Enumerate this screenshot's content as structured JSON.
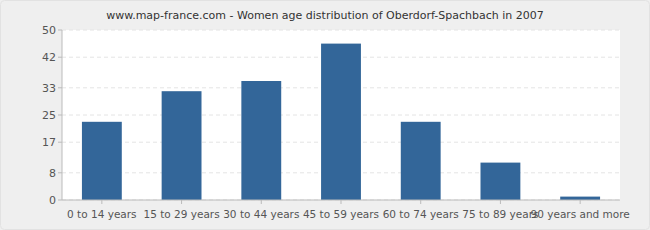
{
  "chart_data": {
    "type": "bar",
    "title": "www.map-france.com - Women age distribution of Oberdorf-Spachbach in 2007",
    "categories": [
      "0 to 14 years",
      "15 to 29 years",
      "30 to 44 years",
      "45 to 59 years",
      "60 to 74 years",
      "75 to 89 years",
      "90 years and more"
    ],
    "values": [
      23,
      32,
      35,
      46,
      23,
      11,
      1
    ],
    "color": "#336699",
    "ylim": [
      0,
      50
    ],
    "yticks": [
      0,
      8,
      17,
      25,
      33,
      42,
      50
    ],
    "grid": true
  }
}
